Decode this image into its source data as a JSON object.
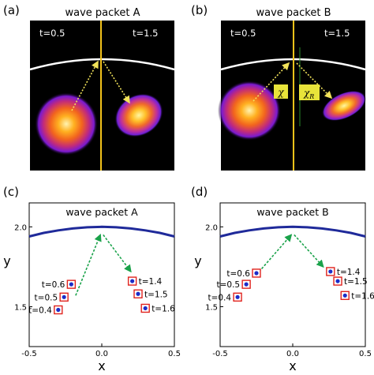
{
  "panels": {
    "a": {
      "label": "(a)",
      "title": "wave packet A",
      "left_time": "t=0.5",
      "right_time": "t=1.5"
    },
    "b": {
      "label": "(b)",
      "title": "wave packet B",
      "left_time": "t=0.5",
      "right_time": "t=1.5",
      "angle_label": "χ",
      "angle_label_r": "χ",
      "angle_label_r_sub": "R"
    },
    "c": {
      "label": "(c)",
      "title": "wave packet A",
      "xlabel": "x",
      "ylabel": "y"
    },
    "d": {
      "label": "(d)",
      "title": "wave packet B",
      "xlabel": "x",
      "ylabel": "y"
    }
  },
  "colors": {
    "barrier_line": "#ffffff",
    "axis_line": "#f3c21a",
    "arrow": "#f2e35a",
    "curve": "#1f2a9a",
    "path_arrow": "#1aa24a",
    "marker_border": "#e0231e",
    "marker_fill": "#1b2cc8"
  },
  "chart_data": [
    {
      "type": "scatter",
      "title": "wave packet A",
      "xlabel": "x",
      "ylabel": "y",
      "xlim": [
        -0.5,
        0.5
      ],
      "ylim": [
        1.25,
        2.15
      ],
      "xticks": [
        "-0.5",
        "0.0",
        "0.5"
      ],
      "yticks": [
        "1.5",
        "2.0"
      ],
      "curve": {
        "x": [
          -0.5,
          -0.4,
          -0.3,
          -0.2,
          -0.1,
          0.0,
          0.1,
          0.2,
          0.3,
          0.4,
          0.5
        ],
        "y": [
          1.94,
          1.962,
          1.978,
          1.99,
          1.997,
          2.0,
          1.997,
          1.99,
          1.978,
          1.962,
          1.94
        ]
      },
      "arrows": [
        [
          -0.18,
          1.57,
          -0.01,
          1.95
        ],
        [
          0.01,
          1.95,
          0.2,
          1.72
        ]
      ],
      "series": [
        {
          "x": [
            -0.3,
            -0.26,
            -0.21
          ],
          "y": [
            1.48,
            1.56,
            1.64
          ],
          "labels": [
            "t=0.4",
            "t=0.5",
            "t=0.6"
          ]
        },
        {
          "x": [
            0.21,
            0.25,
            0.3
          ],
          "y": [
            1.66,
            1.58,
            1.49
          ],
          "labels": [
            "t=1.4",
            "t=1.5",
            "t=1.6"
          ]
        }
      ]
    },
    {
      "type": "scatter",
      "title": "wave packet B",
      "xlabel": "x",
      "ylabel": "y",
      "xlim": [
        -0.5,
        0.5
      ],
      "ylim": [
        1.25,
        2.15
      ],
      "xticks": [
        "-0.5",
        "0.0",
        "0.5"
      ],
      "yticks": [
        "1.5",
        "2.0"
      ],
      "curve": {
        "x": [
          -0.5,
          -0.4,
          -0.3,
          -0.2,
          -0.1,
          0.0,
          0.1,
          0.2,
          0.3,
          0.4,
          0.5
        ],
        "y": [
          1.94,
          1.962,
          1.978,
          1.99,
          1.997,
          2.0,
          1.997,
          1.99,
          1.978,
          1.962,
          1.94
        ]
      },
      "arrows": [
        [
          -0.25,
          1.7,
          -0.01,
          1.95
        ],
        [
          0.01,
          1.95,
          0.21,
          1.75
        ]
      ],
      "series": [
        {
          "x": [
            -0.38,
            -0.32,
            -0.25
          ],
          "y": [
            1.56,
            1.64,
            1.71
          ],
          "labels": [
            "t=0.4",
            "t=0.5",
            "t=0.6"
          ]
        },
        {
          "x": [
            0.26,
            0.31,
            0.36
          ],
          "y": [
            1.72,
            1.66,
            1.57
          ],
          "labels": [
            "t=1.4",
            "t=1.5",
            "t=1.6"
          ]
        }
      ]
    }
  ]
}
